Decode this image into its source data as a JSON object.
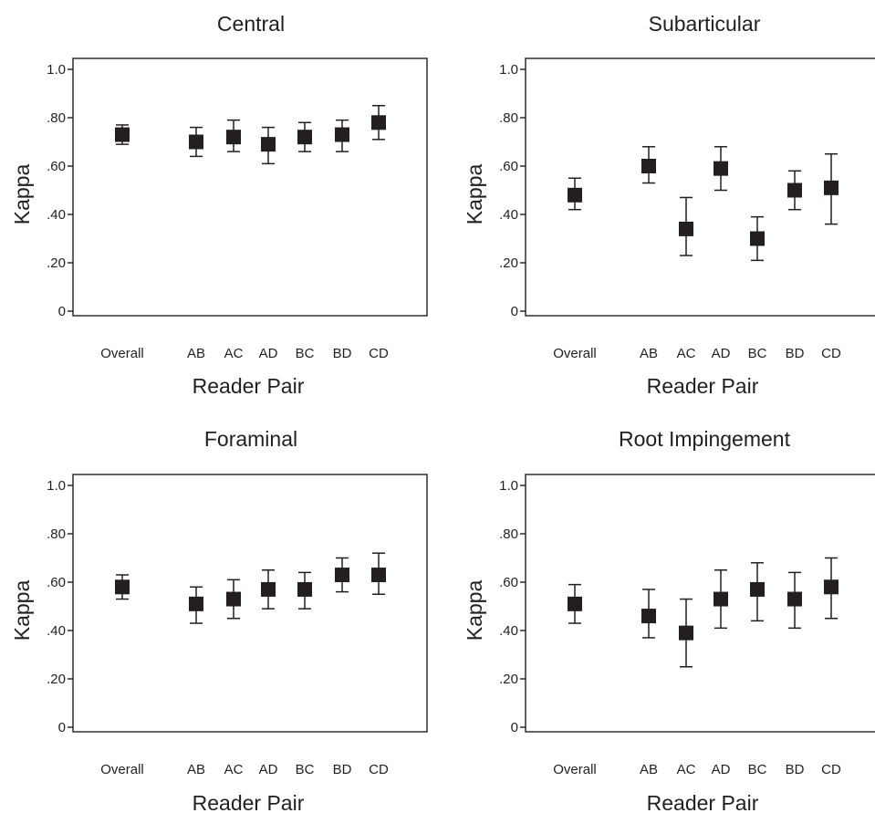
{
  "chart_data": [
    {
      "type": "scatter",
      "title": "Central",
      "xlabel": "Reader Pair",
      "ylabel": "Kappa",
      "categories": [
        "Overall",
        "AB",
        "AC",
        "AD",
        "BC",
        "BD",
        "CD"
      ],
      "y_ticks": [
        "0",
        ".20",
        ".40",
        ".60",
        ".80",
        "1.0"
      ],
      "ylim": [
        0,
        1.0
      ],
      "values": [
        0.73,
        0.7,
        0.72,
        0.69,
        0.72,
        0.73,
        0.78
      ],
      "lower": [
        0.69,
        0.64,
        0.66,
        0.61,
        0.66,
        0.66,
        0.71
      ],
      "upper": [
        0.77,
        0.76,
        0.79,
        0.76,
        0.78,
        0.79,
        0.85
      ]
    },
    {
      "type": "scatter",
      "title": "Subarticular",
      "xlabel": "Reader Pair",
      "ylabel": "Kappa",
      "categories": [
        "Overall",
        "AB",
        "AC",
        "AD",
        "BC",
        "BD",
        "CD"
      ],
      "y_ticks": [
        "0",
        ".20",
        ".40",
        ".60",
        ".80",
        "1.0"
      ],
      "ylim": [
        0,
        1.0
      ],
      "values": [
        0.48,
        0.6,
        0.34,
        0.59,
        0.3,
        0.5,
        0.51
      ],
      "lower": [
        0.42,
        0.53,
        0.23,
        0.5,
        0.21,
        0.42,
        0.36
      ],
      "upper": [
        0.55,
        0.68,
        0.47,
        0.68,
        0.39,
        0.58,
        0.65
      ]
    },
    {
      "type": "scatter",
      "title": "Foraminal",
      "xlabel": "Reader Pair",
      "ylabel": "Kappa",
      "categories": [
        "Overall",
        "AB",
        "AC",
        "AD",
        "BC",
        "BD",
        "CD"
      ],
      "y_ticks": [
        "0",
        ".20",
        ".40",
        ".60",
        ".80",
        "1.0"
      ],
      "ylim": [
        0,
        1.0
      ],
      "values": [
        0.58,
        0.51,
        0.53,
        0.57,
        0.57,
        0.63,
        0.63
      ],
      "lower": [
        0.53,
        0.43,
        0.45,
        0.49,
        0.49,
        0.56,
        0.55
      ],
      "upper": [
        0.63,
        0.58,
        0.61,
        0.65,
        0.64,
        0.7,
        0.72
      ]
    },
    {
      "type": "scatter",
      "title": "Root Impingement",
      "xlabel": "Reader Pair",
      "ylabel": "Kappa",
      "categories": [
        "Overall",
        "AB",
        "AC",
        "AD",
        "BC",
        "BD",
        "CD"
      ],
      "y_ticks": [
        "0",
        ".20",
        ".40",
        ".60",
        ".80",
        "1.0"
      ],
      "ylim": [
        0,
        1.0
      ],
      "values": [
        0.51,
        0.46,
        0.39,
        0.53,
        0.57,
        0.53,
        0.58
      ],
      "lower": [
        0.43,
        0.37,
        0.25,
        0.41,
        0.44,
        0.41,
        0.45
      ],
      "upper": [
        0.59,
        0.57,
        0.53,
        0.65,
        0.68,
        0.64,
        0.7
      ]
    }
  ]
}
